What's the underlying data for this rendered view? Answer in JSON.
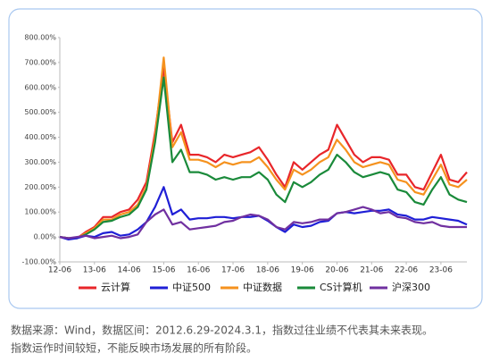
{
  "chart_data": {
    "type": "line",
    "categories": [
      "12-06",
      null,
      null,
      null,
      "13-06",
      null,
      null,
      null,
      "14-06",
      null,
      null,
      null,
      "15-06",
      null,
      null,
      null,
      "16-06",
      null,
      null,
      null,
      "17-06",
      null,
      null,
      null,
      "18-06",
      null,
      null,
      null,
      "19-06",
      null,
      null,
      null,
      "20-06",
      null,
      null,
      null,
      "21-06",
      null,
      null,
      null,
      "22-06",
      null,
      null,
      null,
      "23-06",
      null,
      null,
      null
    ],
    "series": [
      {
        "name": "云计算",
        "color": "#e8262a",
        "values": [
          0,
          -5,
          -5,
          20,
          40,
          80,
          80,
          100,
          110,
          150,
          220,
          420,
          680,
          380,
          450,
          330,
          330,
          320,
          300,
          330,
          320,
          330,
          340,
          360,
          310,
          250,
          200,
          300,
          270,
          300,
          330,
          350,
          450,
          390,
          330,
          300,
          320,
          320,
          310,
          250,
          250,
          200,
          190,
          260,
          330,
          230,
          220,
          260
        ]
      },
      {
        "name": "中证500",
        "color": "#1f1fd6",
        "values": [
          0,
          -10,
          -5,
          5,
          0,
          15,
          20,
          5,
          10,
          30,
          60,
          120,
          200,
          90,
          110,
          70,
          75,
          75,
          80,
          80,
          75,
          80,
          80,
          85,
          65,
          40,
          20,
          50,
          40,
          45,
          60,
          65,
          95,
          100,
          95,
          100,
          105,
          105,
          110,
          90,
          85,
          70,
          70,
          80,
          75,
          70,
          65,
          50
        ]
      },
      {
        "name": "中证数据",
        "color": "#f5921e",
        "values": [
          0,
          -5,
          -5,
          15,
          35,
          70,
          70,
          90,
          100,
          130,
          200,
          400,
          720,
          360,
          420,
          310,
          310,
          300,
          280,
          300,
          290,
          300,
          300,
          320,
          280,
          230,
          190,
          270,
          250,
          270,
          300,
          320,
          390,
          350,
          300,
          280,
          290,
          300,
          290,
          230,
          220,
          180,
          170,
          230,
          290,
          210,
          200,
          230
        ]
      },
      {
        "name": "CS计算机",
        "color": "#1a8a3a",
        "values": [
          0,
          -5,
          -5,
          10,
          30,
          60,
          65,
          80,
          90,
          120,
          190,
          380,
          640,
          300,
          350,
          260,
          260,
          250,
          230,
          240,
          230,
          240,
          240,
          260,
          230,
          170,
          140,
          220,
          200,
          220,
          250,
          270,
          330,
          300,
          260,
          240,
          250,
          260,
          250,
          190,
          180,
          140,
          130,
          190,
          240,
          170,
          150,
          140
        ]
      },
      {
        "name": "沪深300",
        "color": "#7030a0",
        "values": [
          0,
          -5,
          0,
          5,
          -5,
          0,
          5,
          -5,
          0,
          10,
          60,
          90,
          110,
          50,
          60,
          30,
          35,
          40,
          45,
          60,
          65,
          80,
          90,
          85,
          70,
          40,
          30,
          60,
          55,
          60,
          70,
          70,
          95,
          100,
          110,
          120,
          110,
          95,
          100,
          80,
          75,
          60,
          55,
          60,
          45,
          40,
          40,
          40
        ]
      }
    ],
    "ylim": [
      -100,
      800
    ],
    "yticks": [
      {
        "value": -100,
        "label": "-100.00%"
      },
      {
        "value": 0,
        "label": "0.00%"
      },
      {
        "value": 100,
        "label": "100.00%"
      },
      {
        "value": 200,
        "label": "200.00%"
      },
      {
        "value": 300,
        "label": "300.00%"
      },
      {
        "value": 400,
        "label": "400.00%"
      },
      {
        "value": 500,
        "label": "500.00%"
      },
      {
        "value": 600,
        "label": "600.00%"
      },
      {
        "value": 700,
        "label": "700.00%"
      },
      {
        "value": 800,
        "label": "800.00%"
      }
    ],
    "legend": "bottom",
    "notes": [
      "数据来源：Wind，数据区间：2012.6.29-2024.3.1，指数过往业绩不代表其未来表现。",
      "指数运作时间较短，不能反映市场发展的所有阶段。"
    ]
  }
}
